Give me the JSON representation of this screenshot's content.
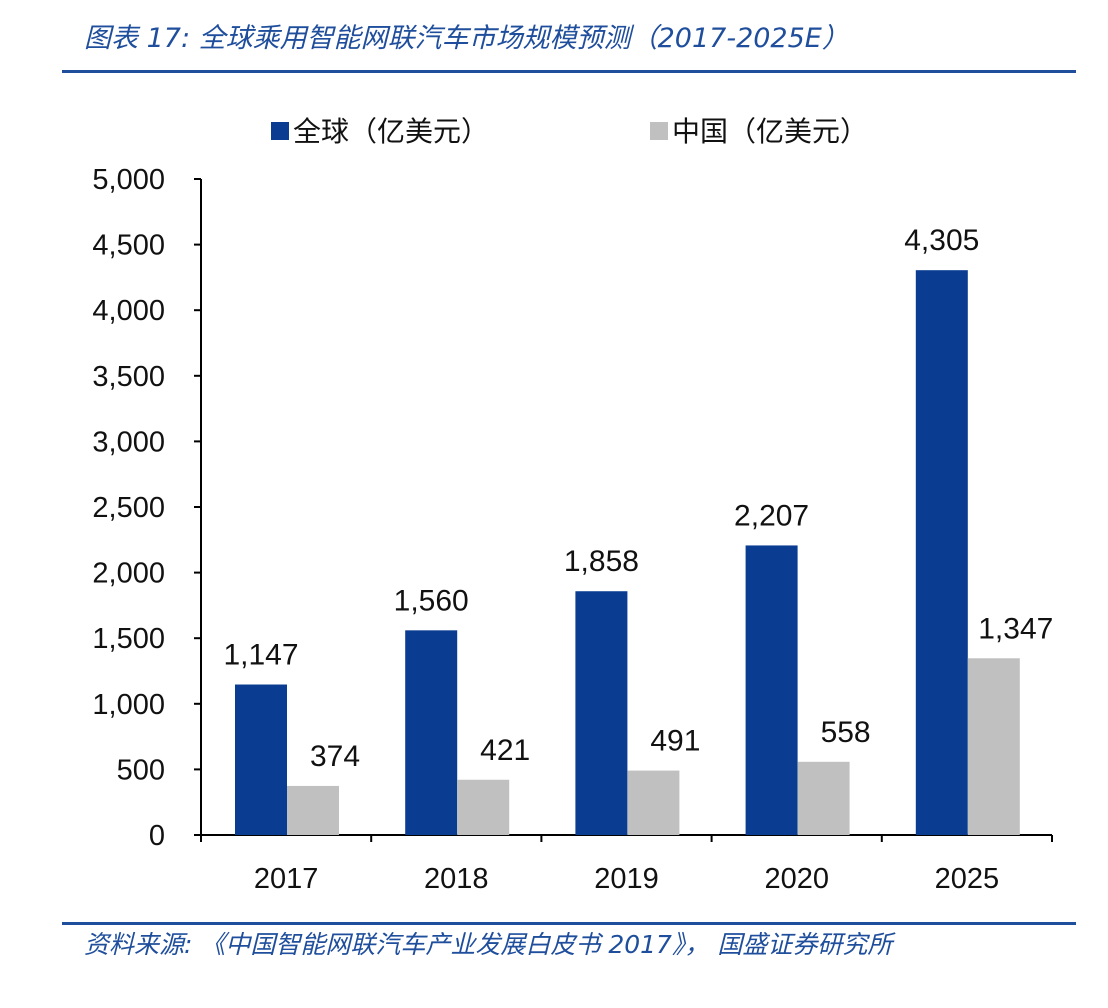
{
  "header": {
    "title": "图表 17:  全球乘用智能网联汽车市场规模预测（2017-2025E）"
  },
  "footer": {
    "source": "资料来源:  《中国智能网联汽车产业发展白皮书 2017》，  国盛证券研究所"
  },
  "colors": {
    "accent": "#1f4e9c",
    "global": "#0a3d91",
    "china": "#c0c0c0",
    "axis": "#000000"
  },
  "chart_data": {
    "type": "bar",
    "categories": [
      "2017",
      "2018",
      "2019",
      "2020",
      "2025"
    ],
    "series": [
      {
        "name": "全球（亿美元）",
        "values": [
          1147,
          1560,
          1858,
          2207,
          4305
        ]
      },
      {
        "name": "中国（亿美元）",
        "values": [
          374,
          421,
          491,
          558,
          1347
        ]
      }
    ],
    "data_labels": [
      [
        "1,147",
        "1,560",
        "1,858",
        "2,207",
        "4,305"
      ],
      [
        "374",
        "421",
        "491",
        "558",
        "1,347"
      ]
    ],
    "ylim": [
      0,
      5000
    ],
    "yticks": [
      0,
      500,
      1000,
      1500,
      2000,
      2500,
      3000,
      3500,
      4000,
      4500,
      5000
    ],
    "ytick_labels": [
      "0",
      "500",
      "1,000",
      "1,500",
      "2,000",
      "2,500",
      "3,000",
      "3,500",
      "4,000",
      "4,500",
      "5,000"
    ],
    "grid": false,
    "legend_position": "top"
  }
}
